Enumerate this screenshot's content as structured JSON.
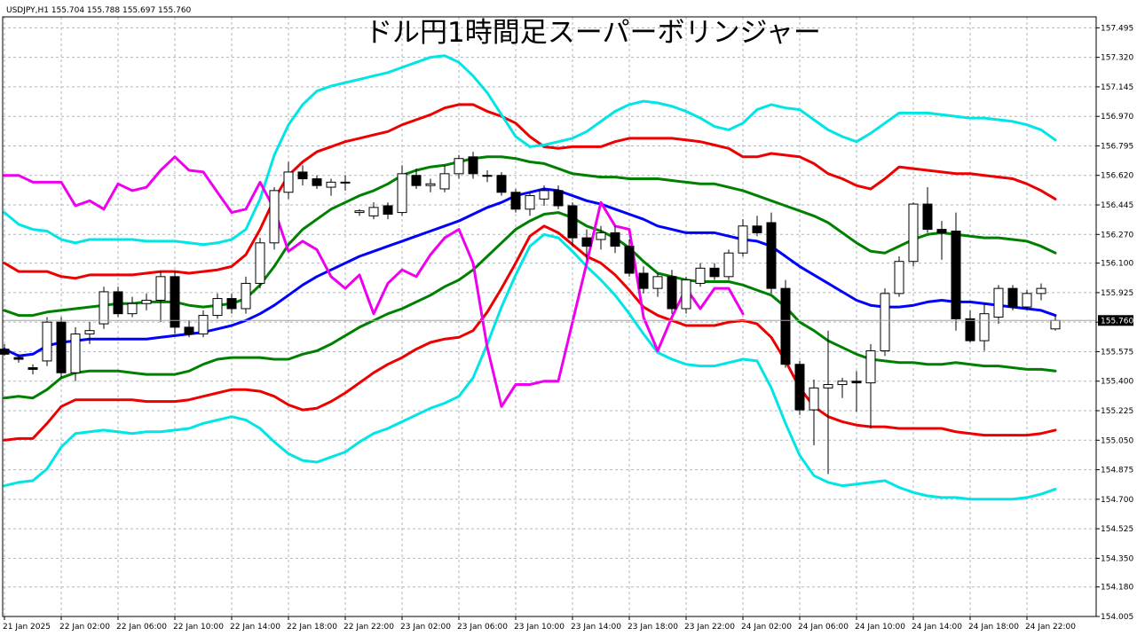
{
  "chart_data": {
    "type": "candlestick",
    "title": "ドル円1時間足スーパーボリンジャー",
    "symbol_header": "USDJPY,H1  155.704 155.788 155.697 155.760",
    "current_price": "155.760",
    "grid": true,
    "ylim": [
      154.005,
      157.56
    ],
    "y_ticks": [
      "157.495",
      "157.320",
      "157.145",
      "156.970",
      "156.795",
      "156.620",
      "156.445",
      "156.270",
      "156.100",
      "155.925",
      "155.750",
      "155.575",
      "155.400",
      "155.225",
      "155.050",
      "154.875",
      "154.700",
      "154.525",
      "154.350",
      "154.180",
      "154.005"
    ],
    "x_ticks": [
      {
        "bar": 0,
        "label": "21 Jan 2025"
      },
      {
        "bar": 4,
        "label": "22 Jan 02:00"
      },
      {
        "bar": 8,
        "label": "22 Jan 06:00"
      },
      {
        "bar": 12,
        "label": "22 Jan 10:00"
      },
      {
        "bar": 16,
        "label": "22 Jan 14:00"
      },
      {
        "bar": 20,
        "label": "22 Jan 18:00"
      },
      {
        "bar": 24,
        "label": "22 Jan 22:00"
      },
      {
        "bar": 28,
        "label": "23 Jan 02:00"
      },
      {
        "bar": 32,
        "label": "23 Jan 06:00"
      },
      {
        "bar": 36,
        "label": "23 Jan 10:00"
      },
      {
        "bar": 40,
        "label": "23 Jan 14:00"
      },
      {
        "bar": 44,
        "label": "23 Jan 18:00"
      },
      {
        "bar": 48,
        "label": "23 Jan 22:00"
      },
      {
        "bar": 52,
        "label": "24 Jan 02:00"
      },
      {
        "bar": 56,
        "label": "24 Jan 06:00"
      },
      {
        "bar": 60,
        "label": "24 Jan 10:00"
      },
      {
        "bar": 64,
        "label": "24 Jan 14:00"
      },
      {
        "bar": 68,
        "label": "24 Jan 18:00"
      },
      {
        "bar": 72,
        "label": "24 Jan 22:00"
      }
    ],
    "candles": [
      [
        155.59,
        155.62,
        155.55,
        155.56
      ],
      [
        155.54,
        155.56,
        155.51,
        155.53
      ],
      [
        155.48,
        155.5,
        155.44,
        155.47
      ],
      [
        155.52,
        155.78,
        155.49,
        155.75
      ],
      [
        155.75,
        155.78,
        155.42,
        155.45
      ],
      [
        155.45,
        155.72,
        155.4,
        155.68
      ],
      [
        155.68,
        155.75,
        155.62,
        155.7
      ],
      [
        155.74,
        155.96,
        155.71,
        155.93
      ],
      [
        155.93,
        155.96,
        155.78,
        155.8
      ],
      [
        155.8,
        155.9,
        155.78,
        155.86
      ],
      [
        155.86,
        155.92,
        155.82,
        155.88
      ],
      [
        155.88,
        156.05,
        155.75,
        156.02
      ],
      [
        156.02,
        156.05,
        155.68,
        155.72
      ],
      [
        155.72,
        155.76,
        155.66,
        155.68
      ],
      [
        155.68,
        155.82,
        155.66,
        155.79
      ],
      [
        155.79,
        155.92,
        155.77,
        155.89
      ],
      [
        155.89,
        155.92,
        155.8,
        155.83
      ],
      [
        155.83,
        156.02,
        155.8,
        155.98
      ],
      [
        155.98,
        156.25,
        155.95,
        156.22
      ],
      [
        156.22,
        156.55,
        156.18,
        156.53
      ],
      [
        156.52,
        156.7,
        156.48,
        156.64
      ],
      [
        156.64,
        156.68,
        156.56,
        156.6
      ],
      [
        156.6,
        156.62,
        156.54,
        156.56
      ],
      [
        156.55,
        156.6,
        156.5,
        156.58
      ],
      [
        156.58,
        156.62,
        156.53,
        156.58
      ],
      [
        156.4,
        156.42,
        156.38,
        156.41
      ],
      [
        156.38,
        156.46,
        156.36,
        156.43
      ],
      [
        156.44,
        156.46,
        156.36,
        156.39
      ],
      [
        156.4,
        156.68,
        156.38,
        156.63
      ],
      [
        156.62,
        156.66,
        156.54,
        156.56
      ],
      [
        156.56,
        156.6,
        156.52,
        156.57
      ],
      [
        156.54,
        156.68,
        156.52,
        156.63
      ],
      [
        156.63,
        156.74,
        156.6,
        156.72
      ],
      [
        156.73,
        156.76,
        156.6,
        156.63
      ],
      [
        156.62,
        156.65,
        156.58,
        156.62
      ],
      [
        156.62,
        156.64,
        156.5,
        156.52
      ],
      [
        156.52,
        156.54,
        156.4,
        156.42
      ],
      [
        156.42,
        156.52,
        156.38,
        156.5
      ],
      [
        156.48,
        156.56,
        156.44,
        156.53
      ],
      [
        156.53,
        156.56,
        156.42,
        156.44
      ],
      [
        156.44,
        156.46,
        156.2,
        156.25
      ],
      [
        156.25,
        156.3,
        156.12,
        156.2
      ],
      [
        156.24,
        156.32,
        156.18,
        156.28
      ],
      [
        156.28,
        156.32,
        156.16,
        156.2
      ],
      [
        156.2,
        156.24,
        156.02,
        156.04
      ],
      [
        156.04,
        156.08,
        155.92,
        155.95
      ],
      [
        155.95,
        156.04,
        155.9,
        156.02
      ],
      [
        156.02,
        156.06,
        155.8,
        155.83
      ],
      [
        155.83,
        156.02,
        155.8,
        156.0
      ],
      [
        155.98,
        156.1,
        155.96,
        156.07
      ],
      [
        156.07,
        156.1,
        156.0,
        156.02
      ],
      [
        156.02,
        156.18,
        156.0,
        156.16
      ],
      [
        156.16,
        156.36,
        156.14,
        156.32
      ],
      [
        156.32,
        156.38,
        156.26,
        156.28
      ],
      [
        156.34,
        156.4,
        155.92,
        155.95
      ],
      [
        155.95,
        156.0,
        155.48,
        155.5
      ],
      [
        155.5,
        155.52,
        155.2,
        155.23
      ],
      [
        155.23,
        155.41,
        155.02,
        155.36
      ],
      [
        155.36,
        155.7,
        154.85,
        155.38
      ],
      [
        155.38,
        155.42,
        155.3,
        155.4
      ],
      [
        155.4,
        155.46,
        155.22,
        155.39
      ],
      [
        155.39,
        155.62,
        155.12,
        155.58
      ],
      [
        155.58,
        155.95,
        155.55,
        155.92
      ],
      [
        155.92,
        156.14,
        155.9,
        156.11
      ],
      [
        156.11,
        156.46,
        156.08,
        156.45
      ],
      [
        156.45,
        156.55,
        156.28,
        156.3
      ],
      [
        156.3,
        156.35,
        156.12,
        156.28
      ],
      [
        156.29,
        156.4,
        155.7,
        155.77
      ],
      [
        155.77,
        155.82,
        155.63,
        155.64
      ],
      [
        155.64,
        155.86,
        155.58,
        155.8
      ],
      [
        155.78,
        155.97,
        155.74,
        155.95
      ],
      [
        155.95,
        155.97,
        155.82,
        155.84
      ],
      [
        155.84,
        155.94,
        155.82,
        155.92
      ],
      [
        155.92,
        155.98,
        155.88,
        155.95
      ],
      [
        155.71,
        155.79,
        155.7,
        155.76
      ]
    ],
    "series": [
      {
        "color": "#0000ff",
        "values": [
          155.59,
          155.55,
          155.56,
          155.61,
          155.63,
          155.64,
          155.65,
          155.65,
          155.65,
          155.65,
          155.65,
          155.66,
          155.67,
          155.68,
          155.69,
          155.71,
          155.73,
          155.76,
          155.8,
          155.85,
          155.91,
          155.97,
          156.02,
          156.06,
          156.1,
          156.14,
          156.17,
          156.2,
          156.23,
          156.26,
          156.29,
          156.32,
          156.35,
          156.39,
          156.43,
          156.46,
          156.5,
          156.52,
          156.54,
          156.53,
          156.5,
          156.47,
          156.45,
          156.42,
          156.39,
          156.36,
          156.32,
          156.3,
          156.28,
          156.28,
          156.28,
          156.26,
          156.24,
          156.23,
          156.2,
          156.14,
          156.08,
          156.03,
          155.98,
          155.93,
          155.88,
          155.85,
          155.84,
          155.84,
          155.85,
          155.87,
          155.88,
          155.87,
          155.87,
          155.86,
          155.85,
          155.84,
          155.83,
          155.82,
          155.79
        ]
      },
      {
        "color": "#008000",
        "values": [
          155.82,
          155.79,
          155.79,
          155.81,
          155.82,
          155.83,
          155.84,
          155.85,
          155.86,
          155.86,
          155.87,
          155.87,
          155.87,
          155.85,
          155.84,
          155.85,
          155.86,
          155.89,
          155.97,
          156.08,
          156.21,
          156.3,
          156.36,
          156.42,
          156.46,
          156.5,
          156.53,
          156.57,
          156.62,
          156.65,
          156.67,
          156.68,
          156.7,
          156.72,
          156.73,
          156.73,
          156.72,
          156.7,
          156.69,
          156.66,
          156.63,
          156.62,
          156.61,
          156.61,
          156.6,
          156.6,
          156.6,
          156.59,
          156.58,
          156.57,
          156.57,
          156.55,
          156.53,
          156.5,
          156.47,
          156.44,
          156.41,
          156.38,
          156.34,
          156.28,
          156.22,
          156.17,
          156.16,
          156.2,
          156.24,
          156.27,
          156.28,
          156.27,
          156.26,
          156.25,
          156.25,
          156.24,
          156.23,
          156.2,
          156.16
        ]
      },
      {
        "color": "#ee0000",
        "values": [
          156.1,
          156.05,
          156.05,
          156.05,
          156.02,
          156.01,
          156.03,
          156.03,
          156.03,
          156.03,
          156.04,
          156.05,
          156.05,
          156.04,
          156.05,
          156.06,
          156.08,
          156.15,
          156.3,
          156.48,
          156.62,
          156.7,
          156.76,
          156.79,
          156.82,
          156.84,
          156.86,
          156.88,
          156.92,
          156.95,
          156.98,
          157.02,
          157.04,
          157.04,
          157.0,
          156.97,
          156.93,
          156.85,
          156.79,
          156.78,
          156.79,
          156.79,
          156.79,
          156.82,
          156.84,
          156.84,
          156.84,
          156.84,
          156.83,
          156.82,
          156.8,
          156.78,
          156.73,
          156.73,
          156.75,
          156.74,
          156.73,
          156.69,
          156.63,
          156.6,
          156.56,
          156.54,
          156.6,
          156.67,
          156.66,
          156.65,
          156.64,
          156.63,
          156.63,
          156.62,
          156.61,
          156.6,
          156.57,
          156.53,
          156.48
        ]
      },
      {
        "color": "#00e5e5",
        "values": [
          156.4,
          156.33,
          156.3,
          156.29,
          156.24,
          156.22,
          156.24,
          156.24,
          156.24,
          156.24,
          156.23,
          156.23,
          156.23,
          156.22,
          156.21,
          156.22,
          156.24,
          156.3,
          156.48,
          156.74,
          156.92,
          157.04,
          157.12,
          157.15,
          157.17,
          157.19,
          157.21,
          157.23,
          157.26,
          157.29,
          157.32,
          157.33,
          157.29,
          157.21,
          157.11,
          156.98,
          156.85,
          156.79,
          156.8,
          156.82,
          156.84,
          156.88,
          156.94,
          157.0,
          157.04,
          157.06,
          157.05,
          157.03,
          157.0,
          156.96,
          156.91,
          156.89,
          156.93,
          157.01,
          157.04,
          157.02,
          157.01,
          156.95,
          156.89,
          156.85,
          156.82,
          156.87,
          156.93,
          156.99,
          156.99,
          156.99,
          156.98,
          156.97,
          156.96,
          156.96,
          156.95,
          156.94,
          156.92,
          156.89,
          156.83
        ]
      },
      {
        "color": "#008000",
        "values": [
          155.3,
          155.31,
          155.3,
          155.35,
          155.42,
          155.45,
          155.46,
          155.46,
          155.46,
          155.45,
          155.44,
          155.44,
          155.44,
          155.46,
          155.5,
          155.53,
          155.54,
          155.54,
          155.54,
          155.53,
          155.53,
          155.56,
          155.58,
          155.62,
          155.67,
          155.72,
          155.76,
          155.8,
          155.83,
          155.87,
          155.91,
          155.96,
          156.0,
          156.06,
          156.14,
          156.22,
          156.3,
          156.35,
          156.39,
          156.4,
          156.37,
          156.32,
          156.29,
          156.25,
          156.19,
          156.11,
          156.04,
          156.02,
          156.0,
          155.99,
          155.99,
          155.99,
          155.97,
          155.94,
          155.91,
          155.84,
          155.75,
          155.7,
          155.64,
          155.6,
          155.56,
          155.53,
          155.52,
          155.51,
          155.51,
          155.5,
          155.5,
          155.51,
          155.5,
          155.49,
          155.49,
          155.48,
          155.47,
          155.47,
          155.46
        ]
      },
      {
        "color": "#ee0000",
        "values": [
          155.05,
          155.06,
          155.06,
          155.15,
          155.25,
          155.29,
          155.29,
          155.29,
          155.29,
          155.29,
          155.28,
          155.28,
          155.28,
          155.29,
          155.31,
          155.33,
          155.35,
          155.35,
          155.34,
          155.31,
          155.26,
          155.23,
          155.24,
          155.28,
          155.33,
          155.39,
          155.45,
          155.5,
          155.54,
          155.59,
          155.63,
          155.65,
          155.66,
          155.7,
          155.81,
          155.95,
          156.1,
          156.26,
          156.32,
          156.28,
          156.21,
          156.14,
          156.1,
          156.03,
          155.94,
          155.84,
          155.79,
          155.76,
          155.73,
          155.73,
          155.73,
          155.75,
          155.76,
          155.74,
          155.66,
          155.52,
          155.36,
          155.25,
          155.19,
          155.16,
          155.14,
          155.13,
          155.13,
          155.12,
          155.12,
          155.12,
          155.12,
          155.1,
          155.09,
          155.08,
          155.08,
          155.08,
          155.08,
          155.09,
          155.11
        ]
      },
      {
        "color": "#00e5e5",
        "values": [
          154.78,
          154.8,
          154.81,
          154.88,
          155.01,
          155.09,
          155.1,
          155.11,
          155.1,
          155.09,
          155.1,
          155.1,
          155.11,
          155.12,
          155.15,
          155.17,
          155.19,
          155.17,
          155.12,
          155.04,
          154.97,
          154.93,
          154.92,
          154.95,
          154.98,
          155.04,
          155.09,
          155.12,
          155.16,
          155.2,
          155.24,
          155.27,
          155.31,
          155.42,
          155.62,
          155.84,
          156.03,
          156.2,
          156.27,
          156.25,
          156.17,
          156.08,
          156.0,
          155.91,
          155.8,
          155.68,
          155.57,
          155.53,
          155.5,
          155.49,
          155.49,
          155.51,
          155.53,
          155.52,
          155.36,
          155.15,
          154.96,
          154.84,
          154.8,
          154.78,
          154.79,
          154.8,
          154.81,
          154.77,
          154.74,
          154.72,
          154.71,
          154.71,
          154.7,
          154.7,
          154.7,
          154.7,
          154.71,
          154.73,
          154.76
        ]
      },
      {
        "color": "#ee00ee",
        "values": [
          156.62,
          156.62,
          156.58,
          156.58,
          156.58,
          156.44,
          156.47,
          156.42,
          156.57,
          156.53,
          156.55,
          156.65,
          156.73,
          156.65,
          156.64,
          156.52,
          156.4,
          156.42,
          156.58,
          156.42,
          156.17,
          156.23,
          156.18,
          156.02,
          155.95,
          156.03,
          155.8,
          155.98,
          156.06,
          156.02,
          156.15,
          156.25,
          156.3,
          156.1,
          155.6,
          155.25,
          155.38,
          155.38,
          155.4,
          155.4,
          155.75,
          156.1,
          156.46,
          156.32,
          156.3,
          155.78,
          155.58,
          155.78,
          155.95,
          155.83,
          155.95,
          155.95,
          155.8
        ]
      }
    ]
  }
}
